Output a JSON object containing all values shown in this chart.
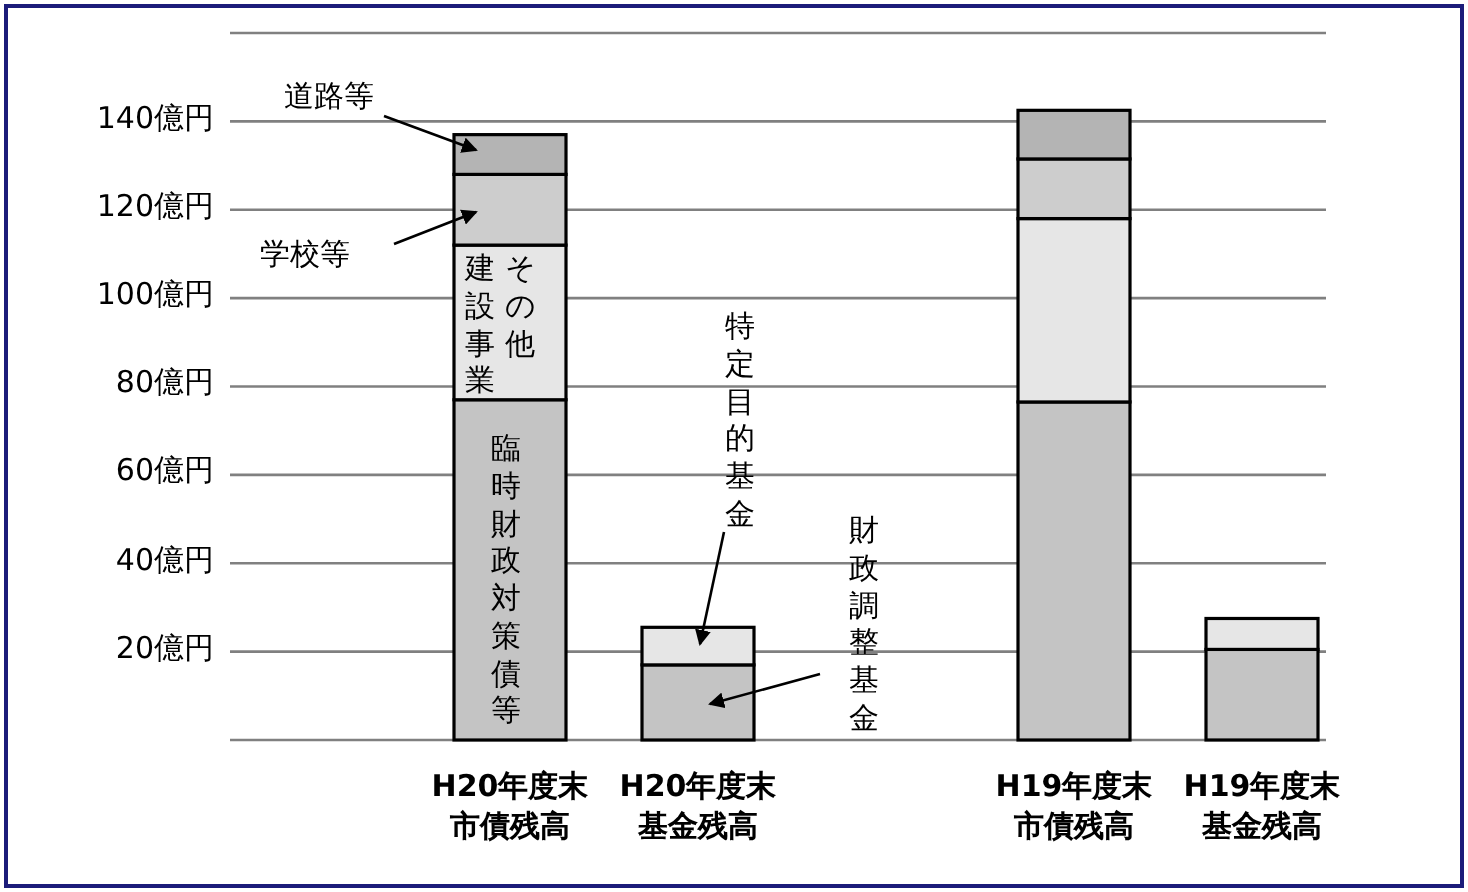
{
  "chart_data": {
    "type": "bar",
    "stacked": true,
    "categories": [
      "H20年度末市債残高",
      "H20年度末基金残高",
      null,
      "H19年度末市債残高",
      "H19年度末基金残高"
    ],
    "series": [
      {
        "color": "#c4c4c4",
        "values": [
          77,
          17,
          null,
          76.5,
          20.5
        ]
      },
      {
        "color": "#e6e6e6",
        "values": [
          35,
          8.5,
          null,
          41.5,
          7
        ]
      },
      {
        "color": "#cdcdcd",
        "values": [
          16,
          null,
          null,
          13.5,
          null
        ]
      },
      {
        "color": "#b4b4b4",
        "values": [
          9,
          null,
          null,
          11,
          null
        ]
      }
    ],
    "ylim": [
      0,
      160
    ],
    "yticks": [
      {
        "value": 20,
        "label": "20億円"
      },
      {
        "value": 40,
        "label": "40億円"
      },
      {
        "value": 60,
        "label": "60億円"
      },
      {
        "value": 80,
        "label": "80億円"
      },
      {
        "value": 100,
        "label": "100億円"
      },
      {
        "value": 120,
        "label": "120億円"
      },
      {
        "value": 140,
        "label": "140億円"
      },
      {
        "value": 160,
        "label": null
      }
    ],
    "grid": "y",
    "annotations": [
      "道路等",
      "学校等",
      "その他建設事業",
      "臨時財政対策債等",
      "特定目的基金",
      "財政調整基金"
    ]
  }
}
